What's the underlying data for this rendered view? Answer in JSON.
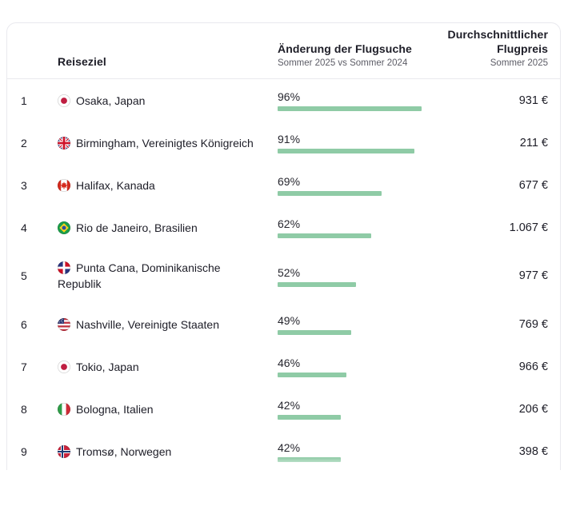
{
  "table": {
    "header": {
      "destination_label": "Reiseziel",
      "change_title": "Änderung der Flugsuche",
      "change_subtitle": "Sommer 2025 vs Sommer 2024",
      "price_title_line1": "Durchschnittlicher",
      "price_title_line2": "Flugpreis",
      "price_subtitle": "Sommer 2025"
    },
    "rows": [
      {
        "rank": "1",
        "flag": "japan",
        "destination": "Osaka, Japan",
        "change_label": "96%",
        "change_pct": 96,
        "price": "931 €"
      },
      {
        "rank": "2",
        "flag": "united-kingdom",
        "destination": "Birmingham, Vereinigtes Königreich",
        "change_label": "91%",
        "change_pct": 91,
        "price": "211 €"
      },
      {
        "rank": "3",
        "flag": "canada",
        "destination": "Halifax, Kanada",
        "change_label": "69%",
        "change_pct": 69,
        "price": "677 €"
      },
      {
        "rank": "4",
        "flag": "brazil",
        "destination": "Rio de Janeiro, Brasilien",
        "change_label": "62%",
        "change_pct": 62,
        "price": "1.067 €"
      },
      {
        "rank": "5",
        "flag": "dominican-republic",
        "destination": "Punta Cana, Dominikanische Republik",
        "change_label": "52%",
        "change_pct": 52,
        "price": "977 €"
      },
      {
        "rank": "6",
        "flag": "usa",
        "destination": "Nashville, Vereinigte Staaten",
        "change_label": "49%",
        "change_pct": 49,
        "price": "769 €"
      },
      {
        "rank": "7",
        "flag": "japan",
        "destination": "Tokio, Japan",
        "change_label": "46%",
        "change_pct": 46,
        "price": "966 €"
      },
      {
        "rank": "8",
        "flag": "italy",
        "destination": "Bologna, Italien",
        "change_label": "42%",
        "change_pct": 42,
        "price": "206 €"
      },
      {
        "rank": "9",
        "flag": "norway",
        "destination": "Tromsø, Norwegen",
        "change_label": "42%",
        "change_pct": 42,
        "price": "398 €"
      }
    ]
  },
  "colors": {
    "bar_green": "#8fcba6",
    "text_dark": "#1d1d27",
    "text_muted": "#5c5c66",
    "card_border": "#e9e9ee"
  },
  "chart_data": {
    "type": "table",
    "title": "",
    "columns": [
      "",
      "Reiseziel",
      "Änderung der Flugsuche — Sommer 2025 vs Sommer 2024 (%)",
      "Durchschnittlicher Flugpreis — Sommer 2025 (€)"
    ],
    "rows": [
      [
        1,
        "Osaka, Japan",
        96,
        "931 €"
      ],
      [
        2,
        "Birmingham, Vereinigtes Königreich",
        91,
        "211 €"
      ],
      [
        3,
        "Halifax, Kanada",
        69,
        "677 €"
      ],
      [
        4,
        "Rio de Janeiro, Brasilien",
        62,
        "1.067 €"
      ],
      [
        5,
        "Punta Cana, Dominikanische Republik",
        52,
        "977 €"
      ],
      [
        6,
        "Nashville, Vereinigte Staaten",
        49,
        "769 €"
      ],
      [
        7,
        "Tokio, Japan",
        46,
        "966 €"
      ],
      [
        8,
        "Bologna, Italien",
        42,
        "206 €"
      ],
      [
        9,
        "Tromsø, Norwegen",
        42,
        "398 €"
      ]
    ],
    "bar_series": {
      "name": "Änderung der Flugsuche (%)",
      "values": [
        96,
        91,
        69,
        62,
        52,
        49,
        46,
        42,
        42
      ]
    },
    "bar_range": [
      0,
      100
    ],
    "legend_position": "none",
    "grid": false
  }
}
